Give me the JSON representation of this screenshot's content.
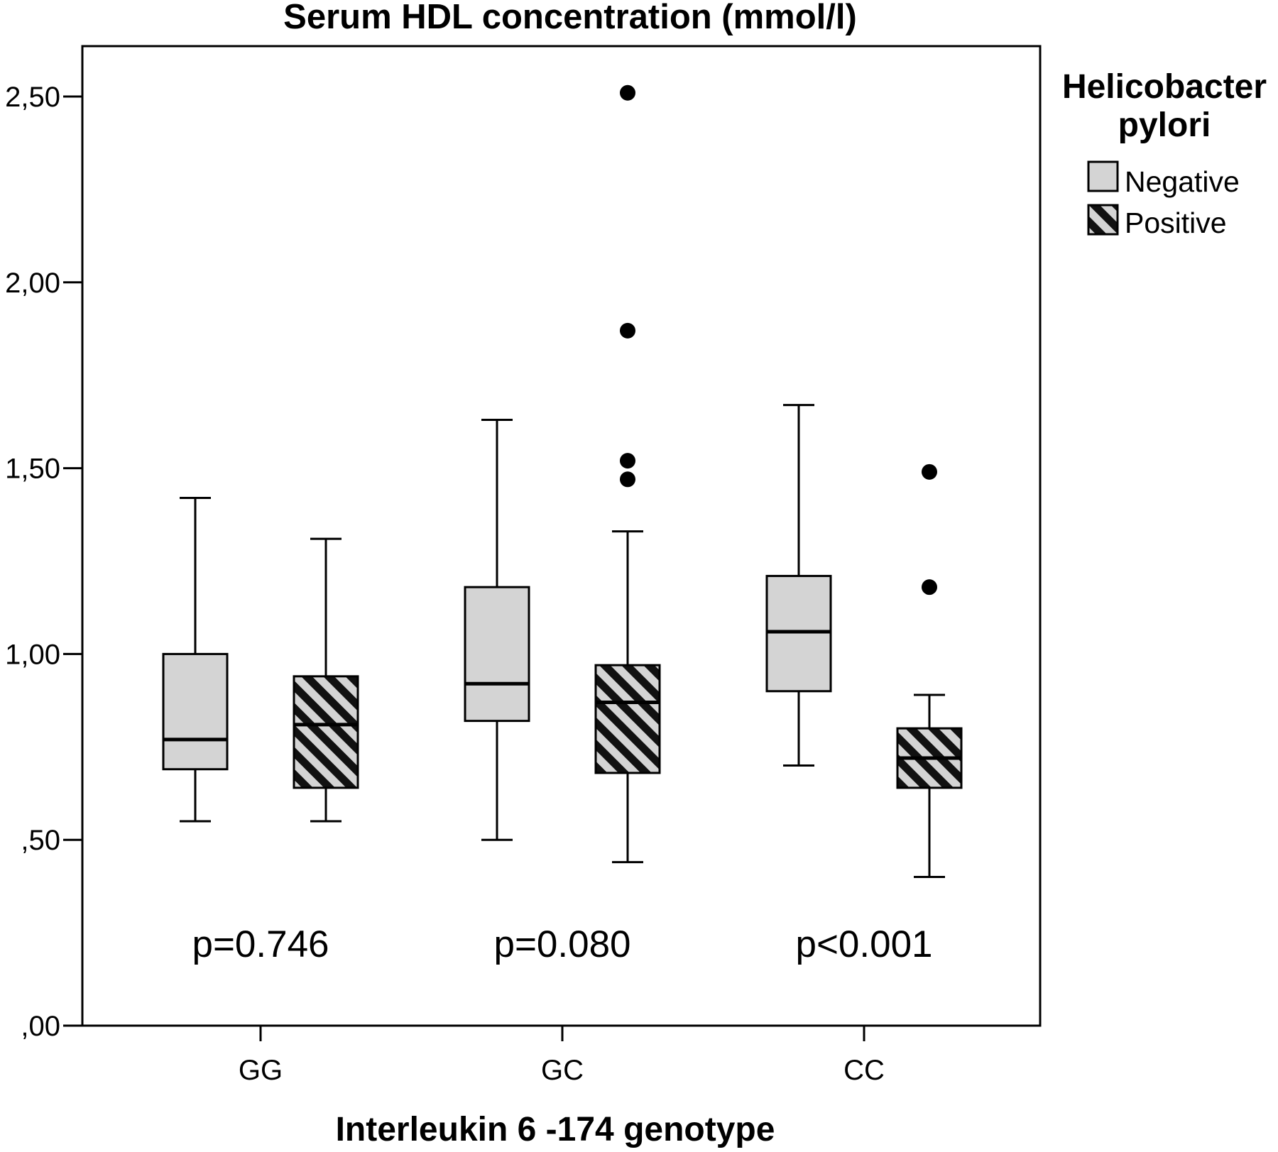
{
  "chart_data": {
    "type": "boxplot",
    "title": "Serum HDL concentration (mmol/l)",
    "xlabel": "Interleukin 6 -174 genotype",
    "ylabel": "",
    "ylim": [
      0,
      2.64
    ],
    "yticks": [
      {
        "value": 0.0,
        "label": ",00"
      },
      {
        "value": 0.5,
        "label": ",50"
      },
      {
        "value": 1.0,
        "label": "1,00"
      },
      {
        "value": 1.5,
        "label": "1,50"
      },
      {
        "value": 2.0,
        "label": "2,00"
      },
      {
        "value": 2.5,
        "label": "2,50"
      }
    ],
    "categories": [
      "GG",
      "GC",
      "CC"
    ],
    "legend": {
      "title_line1": "Helicobacter",
      "title_line2": "pylori",
      "position": "right"
    },
    "series": [
      {
        "name": "Negative",
        "fill": "#d4d4d4",
        "pattern": "solid",
        "boxes": [
          {
            "category": "GG",
            "whisker_low": 0.55,
            "q1": 0.69,
            "median": 0.77,
            "q3": 1.0,
            "whisker_high": 1.42,
            "outliers": []
          },
          {
            "category": "GC",
            "whisker_low": 0.5,
            "q1": 0.82,
            "median": 0.92,
            "q3": 1.18,
            "whisker_high": 1.63,
            "outliers": []
          },
          {
            "category": "CC",
            "whisker_low": 0.7,
            "q1": 0.9,
            "median": 1.06,
            "q3": 1.21,
            "whisker_high": 1.67,
            "outliers": []
          }
        ]
      },
      {
        "name": "Positive",
        "fill": "#d4d4d4",
        "pattern": "hatched",
        "boxes": [
          {
            "category": "GG",
            "whisker_low": 0.55,
            "q1": 0.64,
            "median": 0.81,
            "q3": 0.94,
            "whisker_high": 1.31,
            "outliers": []
          },
          {
            "category": "GC",
            "whisker_low": 0.44,
            "q1": 0.68,
            "median": 0.87,
            "q3": 0.97,
            "whisker_high": 1.33,
            "outliers": [
              1.47,
              1.52,
              1.87,
              2.51
            ]
          },
          {
            "category": "CC",
            "whisker_low": 0.4,
            "q1": 0.64,
            "median": 0.72,
            "q3": 0.8,
            "whisker_high": 0.89,
            "outliers": [
              1.18,
              1.49
            ]
          }
        ]
      }
    ],
    "annotations": [
      {
        "category": "GG",
        "text": "p=0.746",
        "value": 0.22
      },
      {
        "category": "GC",
        "text": "p=0.080",
        "value": 0.22
      },
      {
        "category": "CC",
        "text": "p<0.001",
        "value": 0.22
      }
    ]
  },
  "colors": {
    "box_fill": "#d4d4d4",
    "line": "#000000",
    "background": "#ffffff"
  }
}
